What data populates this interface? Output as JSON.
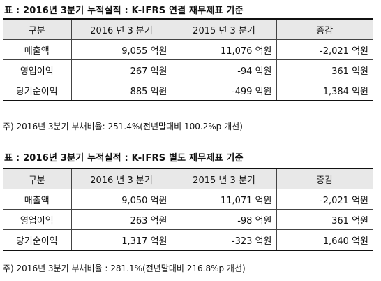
{
  "sections": [
    {
      "title": "표 : 2016년 3분기 누적실적 : K-IFRS 연결 재무제표 기준",
      "headers": [
        "구분",
        "2016 년 3 분기",
        "2015 년 3 분기",
        "증감"
      ],
      "rows": [
        [
          "매출액",
          "9,055 억원",
          "11,076 억원",
          "-2,021 억원"
        ],
        [
          "영업이익",
          "267 억원",
          "-94 억원",
          "361 억원"
        ],
        [
          "당기순이익",
          "885 억원",
          "-499 억원",
          "1,384 억원"
        ]
      ],
      "note": "주) 2016년 3분기 부채비율: 251.4%(전년말대비 100.2%p 개선)"
    },
    {
      "title": "표 : 2016년 3분기 누적실적 : K-IFRS 별도 재무제표 기준",
      "headers": [
        "구분",
        "2016 년 3 분기",
        "2015 년 3 분기",
        "증감"
      ],
      "rows": [
        [
          "매출액",
          "9,050 억원",
          "11,071 억원",
          "-2,021 억원"
        ],
        [
          "영업이익",
          "263 억원",
          "-98 억원",
          "361 억원"
        ],
        [
          "당기순이익",
          "1,317 억원",
          "-323 억원",
          "1,640 억원"
        ]
      ],
      "note": "주) 2016년 3분기 부채비율 : 281.1%(전년말대비 216.8%p 개선)"
    }
  ]
}
